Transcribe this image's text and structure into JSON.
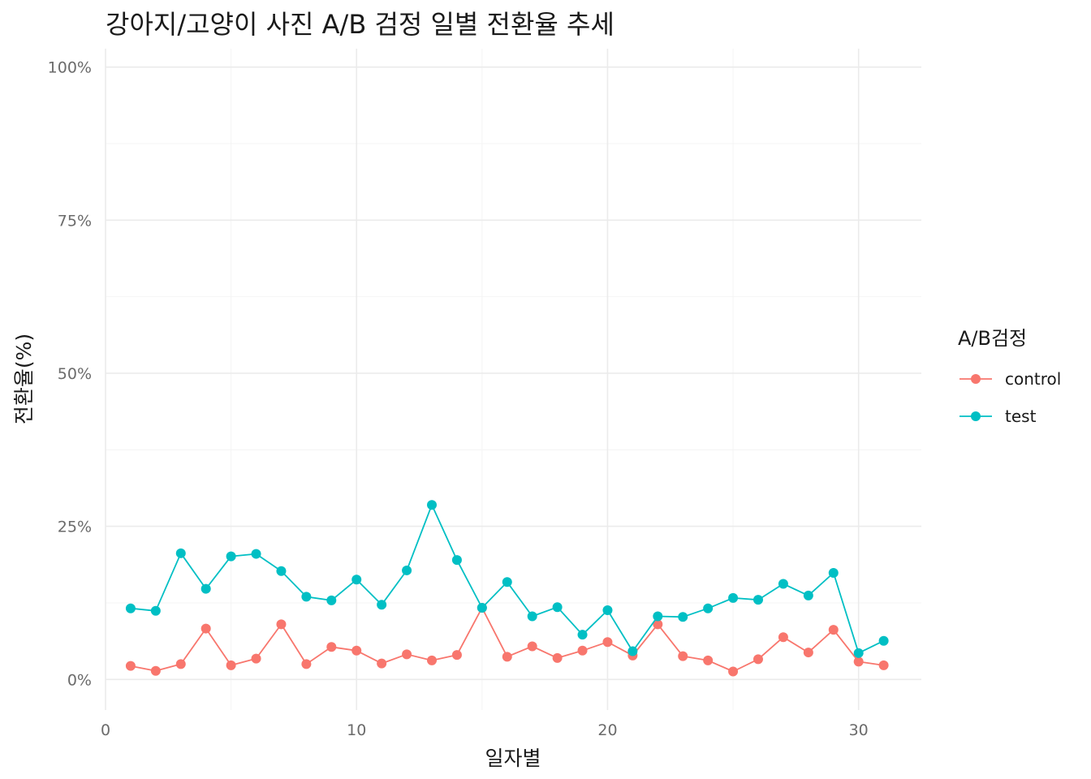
{
  "chart_data": {
    "type": "line",
    "title": "강아지/고양이 사진 A/B 검정 일별 전환율 추세",
    "xlabel": "일자별",
    "ylabel": "전환율(%)",
    "xlim": [
      0,
      32.5
    ],
    "ylim": [
      -0.05,
      1.03
    ],
    "x_ticks": [
      0,
      10,
      20,
      30
    ],
    "x_tick_labels": [
      "0",
      "10",
      "20",
      "30"
    ],
    "y_ticks": [
      0,
      0.25,
      0.5,
      0.75,
      1.0
    ],
    "y_tick_labels": [
      "0%",
      "25%",
      "50%",
      "75%",
      "100%"
    ],
    "grid": true,
    "legend": {
      "title": "A/B검정",
      "placement": "right"
    },
    "x": [
      1,
      2,
      3,
      4,
      5,
      6,
      7,
      8,
      9,
      10,
      11,
      12,
      13,
      14,
      15,
      16,
      17,
      18,
      19,
      20,
      21,
      22,
      23,
      24,
      25,
      26,
      27,
      28,
      29,
      30,
      31
    ],
    "series": [
      {
        "name": "control",
        "color": "#f8766d",
        "values": [
          0.022,
          0.014,
          0.025,
          0.083,
          0.023,
          0.034,
          0.09,
          0.025,
          0.053,
          0.047,
          0.026,
          0.041,
          0.031,
          0.04,
          0.117,
          0.037,
          0.054,
          0.035,
          0.047,
          0.061,
          0.039,
          0.09,
          0.038,
          0.031,
          0.013,
          0.033,
          0.069,
          0.044,
          0.081,
          0.029,
          0.023
        ]
      },
      {
        "name": "test",
        "color": "#00bfc4",
        "values": [
          0.116,
          0.112,
          0.206,
          0.148,
          0.201,
          0.205,
          0.177,
          0.135,
          0.129,
          0.163,
          0.122,
          0.178,
          0.285,
          0.195,
          0.117,
          0.159,
          0.103,
          0.118,
          0.073,
          0.113,
          0.046,
          0.103,
          0.102,
          0.116,
          0.133,
          0.13,
          0.156,
          0.137,
          0.174,
          0.043,
          0.063
        ]
      }
    ]
  }
}
